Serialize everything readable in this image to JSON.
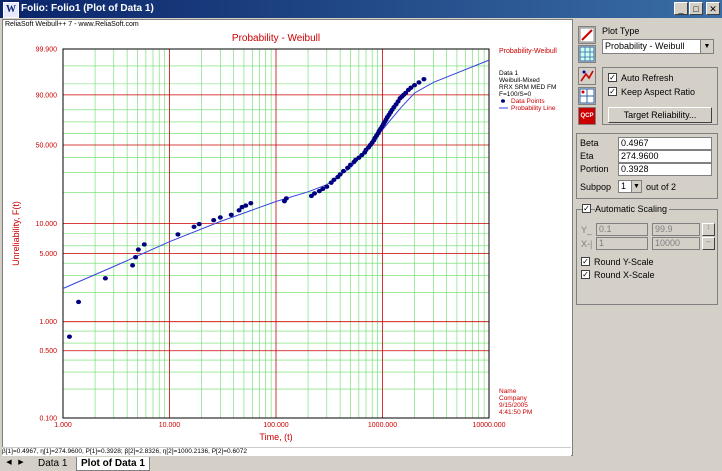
{
  "window": {
    "title": "Folio: Folio1 (Plot of Data 1)",
    "app_icon_letter": "W",
    "minimize_label": "_",
    "maximize_label": "□",
    "close_label": "✕"
  },
  "plot": {
    "watermark": "ReliaSoft Weibull++ 7 - www.ReliaSoft.com",
    "status_line": "β[1]=0.4967, η[1]=274.9600, P[1]=0.3928; β[2]=2.8326, η[2]=1000.2136, P[2]=0.6072"
  },
  "chart_data": {
    "type": "scatter",
    "title": "Probability - Weibull",
    "xlabel": "Time, (t)",
    "ylabel": "Unreliability, F(t)",
    "x_scale": "log",
    "y_scale": "weibull",
    "xlim": [
      1,
      10000
    ],
    "ylim": [
      0.1,
      99.9
    ],
    "x_tick_labels": [
      "1.000",
      "10.000",
      "100.000",
      "1000.000",
      "10000.000"
    ],
    "y_tick_labels": [
      "99.900",
      "90.000",
      "50.000",
      "10.000",
      "5.000",
      "1.000",
      "0.500",
      "0.100"
    ],
    "y_tick_values": [
      99.9,
      90,
      50,
      10,
      5,
      1,
      0.5,
      0.1
    ],
    "grid": true,
    "legend_position": "right",
    "legend": {
      "heading": "Probability-Weibull",
      "lines": [
        "Data 1",
        "Weibull-Mixed",
        "RRX SRM MED FM",
        "F=100/S=0"
      ],
      "points_label": "Data Points",
      "line_label": "Probability Line"
    },
    "annotation": [
      "Name",
      "Company",
      "9/15/2005",
      "4:41:50 PM"
    ],
    "series": [
      {
        "name": "Data Points",
        "points": [
          [
            1.15,
            0.7
          ],
          [
            1.4,
            1.6
          ],
          [
            2.5,
            2.8
          ],
          [
            4.5,
            3.8
          ],
          [
            4.8,
            4.6
          ],
          [
            5.1,
            5.5
          ],
          [
            5.8,
            6.2
          ],
          [
            12,
            7.8
          ],
          [
            17,
            9.3
          ],
          [
            19,
            9.9
          ],
          [
            26,
            10.8
          ],
          [
            30,
            11.5
          ],
          [
            38,
            12.2
          ],
          [
            45,
            13.5
          ],
          [
            48,
            14.5
          ],
          [
            52,
            15.0
          ],
          [
            58,
            15.8
          ],
          [
            120,
            16.5
          ],
          [
            125,
            17.5
          ],
          [
            215,
            18.5
          ],
          [
            230,
            19.5
          ],
          [
            255,
            20.5
          ],
          [
            275,
            21.5
          ],
          [
            300,
            22.5
          ],
          [
            330,
            24.5
          ],
          [
            350,
            26
          ],
          [
            380,
            27.5
          ],
          [
            400,
            29
          ],
          [
            430,
            31
          ],
          [
            470,
            33
          ],
          [
            500,
            35
          ],
          [
            540,
            37
          ],
          [
            560,
            38.5
          ],
          [
            600,
            40
          ],
          [
            640,
            42
          ],
          [
            680,
            44
          ],
          [
            700,
            46
          ],
          [
            740,
            48
          ],
          [
            770,
            50
          ],
          [
            800,
            52
          ],
          [
            830,
            54
          ],
          [
            850,
            56
          ],
          [
            880,
            58
          ],
          [
            910,
            60
          ],
          [
            930,
            62
          ],
          [
            960,
            64
          ],
          [
            990,
            66
          ],
          [
            1020,
            68
          ],
          [
            1050,
            70
          ],
          [
            1080,
            72
          ],
          [
            1110,
            74
          ],
          [
            1150,
            76
          ],
          [
            1190,
            78
          ],
          [
            1230,
            80
          ],
          [
            1280,
            82
          ],
          [
            1340,
            84
          ],
          [
            1400,
            86
          ],
          [
            1460,
            88
          ],
          [
            1520,
            89
          ],
          [
            1580,
            90
          ],
          [
            1650,
            91
          ],
          [
            1750,
            92.5
          ],
          [
            1850,
            93.5
          ],
          [
            2000,
            94.5
          ],
          [
            2200,
            95.5
          ],
          [
            2450,
            96.5
          ]
        ]
      },
      {
        "name": "Probability Line",
        "points": [
          [
            1,
            2.2
          ],
          [
            3,
            3.7
          ],
          [
            10,
            6.6
          ],
          [
            30,
            10.5
          ],
          [
            100,
            16.4
          ],
          [
            200,
            20.2
          ],
          [
            300,
            23.5
          ],
          [
            500,
            33
          ],
          [
            700,
            46
          ],
          [
            900,
            58
          ],
          [
            1000,
            63
          ],
          [
            1200,
            72
          ],
          [
            1500,
            82
          ],
          [
            2000,
            91
          ],
          [
            3000,
            95.5
          ],
          [
            10000,
            99.5
          ]
        ]
      }
    ]
  },
  "panel": {
    "plot_type_label": "Plot Type",
    "plot_type_value": "Probability - Weibull",
    "auto_refresh_label": "Auto Refresh",
    "auto_refresh_checked": true,
    "keep_aspect_label": "Keep Aspect Ratio",
    "keep_aspect_checked": true,
    "target_reliability_label": "Target Reliability...",
    "beta_label": "Beta",
    "beta_value": "0.4967",
    "eta_label": "Eta",
    "eta_value": "274.9600",
    "portion_label": "Portion",
    "portion_value": "0.3928",
    "subpop_label": "Subpop",
    "subpop_value": "1",
    "subpop_of": "out of 2",
    "auto_scaling_label": "Automatic Scaling",
    "auto_scaling_checked": true,
    "y_label": "Y_",
    "y_min": "0.1",
    "y_max": "99.9",
    "x_label": "X-|",
    "x_min": "1",
    "x_max": "10000",
    "round_y_label": "Round Y-Scale",
    "round_y_checked": true,
    "round_x_label": "Round X-Scale",
    "round_x_checked": true,
    "qcp_label": "QCP"
  },
  "tabs": [
    {
      "label": "Data 1",
      "active": false
    },
    {
      "label": "Plot of Data 1",
      "active": true
    }
  ],
  "colors": {
    "major_grid": "#cc0000",
    "minor_grid": "#66dd66",
    "axis_text": "#cc0000",
    "points": "#000080",
    "line": "#3344dd"
  }
}
